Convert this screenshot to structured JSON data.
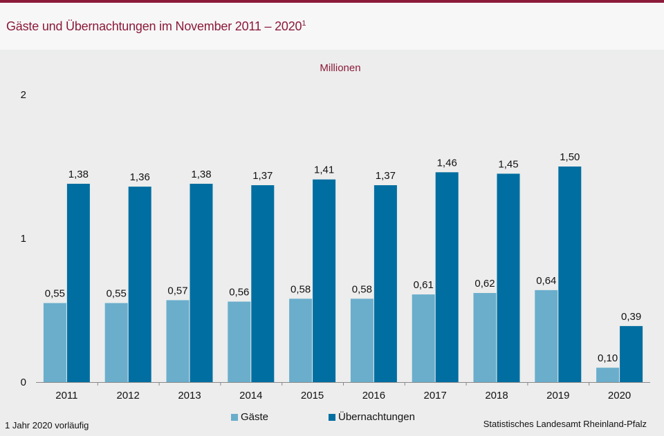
{
  "header": {
    "title": "Gäste und Übernachtungen im November 2011 – 2020",
    "title_sup": "1"
  },
  "chart_data": {
    "type": "bar",
    "unit_label": "Millionen",
    "categories": [
      "2011",
      "2012",
      "2013",
      "2014",
      "2015",
      "2016",
      "2017",
      "2018",
      "2019",
      "2020"
    ],
    "series": [
      {
        "name": "Gäste",
        "color": "#6aaecc",
        "values": [
          0.55,
          0.55,
          0.57,
          0.56,
          0.58,
          0.58,
          0.61,
          0.62,
          0.64,
          0.1
        ],
        "labels": [
          "0,55",
          "0,55",
          "0,57",
          "0,56",
          "0,58",
          "0,58",
          "0,61",
          "0,62",
          "0,64",
          "0,10"
        ]
      },
      {
        "name": "Übernachtungen",
        "color": "#006ea1",
        "values": [
          1.38,
          1.36,
          1.38,
          1.37,
          1.41,
          1.37,
          1.46,
          1.45,
          1.5,
          0.39
        ],
        "labels": [
          "1,38",
          "1,36",
          "1,38",
          "1,37",
          "1,41",
          "1,37",
          "1,46",
          "1,45",
          "1,50",
          "0,39"
        ]
      }
    ],
    "ylim": [
      0,
      2
    ],
    "yticks": [
      "0",
      "1",
      "2"
    ],
    "xlabel": "",
    "ylabel": "",
    "grid": false,
    "legend": "bottom"
  },
  "footnote": "1 Jahr 2020 vorläufig",
  "source": "Statistisches Landesamt Rheinland-Pfalz"
}
